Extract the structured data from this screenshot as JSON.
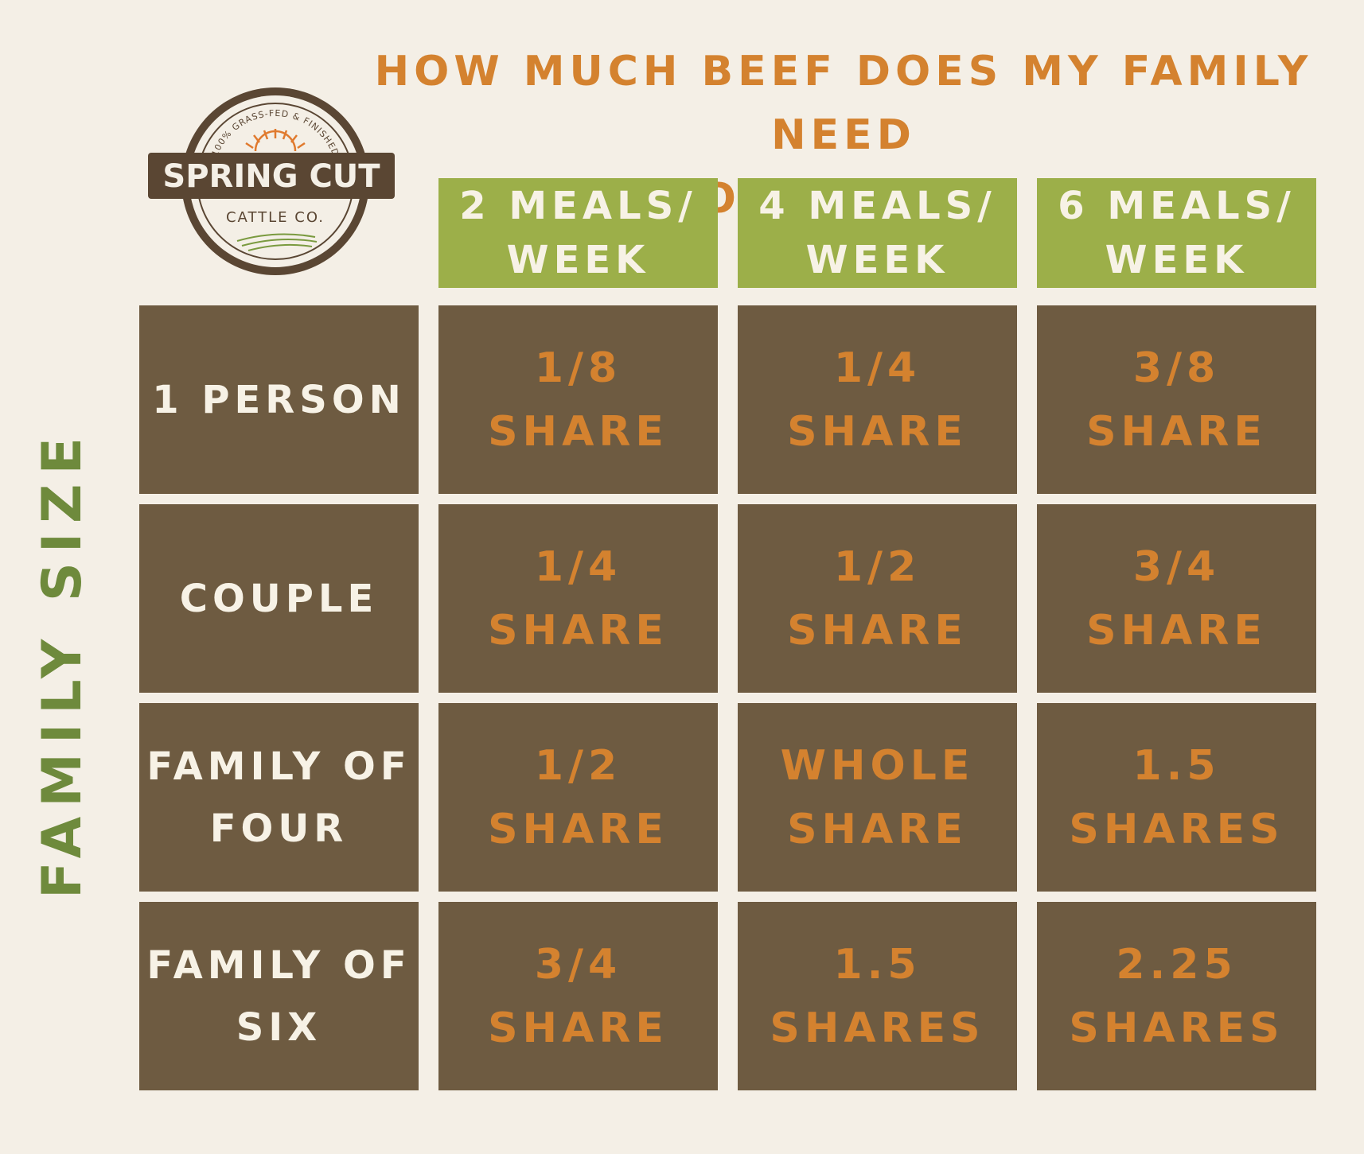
{
  "title": {
    "line1": "HOW MUCH BEEF DOES MY FAMILY NEED",
    "line2": "FOR 1 YEAR?"
  },
  "logo": {
    "arc_text": "100% GRASS-FED & FINISHED",
    "brand": "SPRING CUT",
    "subtitle": "CATTLE CO."
  },
  "side_label": "FAMILY SIZE",
  "columns": [
    {
      "line1": "2 MEALS/",
      "line2": "WEEK"
    },
    {
      "line1": "4 MEALS/",
      "line2": "WEEK"
    },
    {
      "line1": "6 MEALS/",
      "line2": "WEEK"
    }
  ],
  "rows": [
    {
      "label1": "1 PERSON",
      "label2": "",
      "cells": [
        {
          "amount": "1/8",
          "unit": "SHARE"
        },
        {
          "amount": "1/4",
          "unit": "SHARE"
        },
        {
          "amount": "3/8",
          "unit": "SHARE"
        }
      ]
    },
    {
      "label1": "COUPLE",
      "label2": "",
      "cells": [
        {
          "amount": "1/4",
          "unit": "SHARE"
        },
        {
          "amount": "1/2",
          "unit": "SHARE"
        },
        {
          "amount": "3/4",
          "unit": "SHARE"
        }
      ]
    },
    {
      "label1": "FAMILY OF",
      "label2": "FOUR",
      "cells": [
        {
          "amount": "1/2",
          "unit": "SHARE"
        },
        {
          "amount": "WHOLE",
          "unit": "SHARE"
        },
        {
          "amount": "1.5",
          "unit": "SHARES"
        }
      ]
    },
    {
      "label1": "FAMILY OF",
      "label2": "SIX",
      "cells": [
        {
          "amount": "3/4",
          "unit": "SHARE"
        },
        {
          "amount": "1.5",
          "unit": "SHARES"
        },
        {
          "amount": "2.25",
          "unit": "SHARES"
        }
      ]
    }
  ],
  "colors": {
    "background": "#f4efe6",
    "header": "#9caf49",
    "cell": "#6e5b41",
    "accent": "#d4822f",
    "label": "#6e8a3c"
  }
}
